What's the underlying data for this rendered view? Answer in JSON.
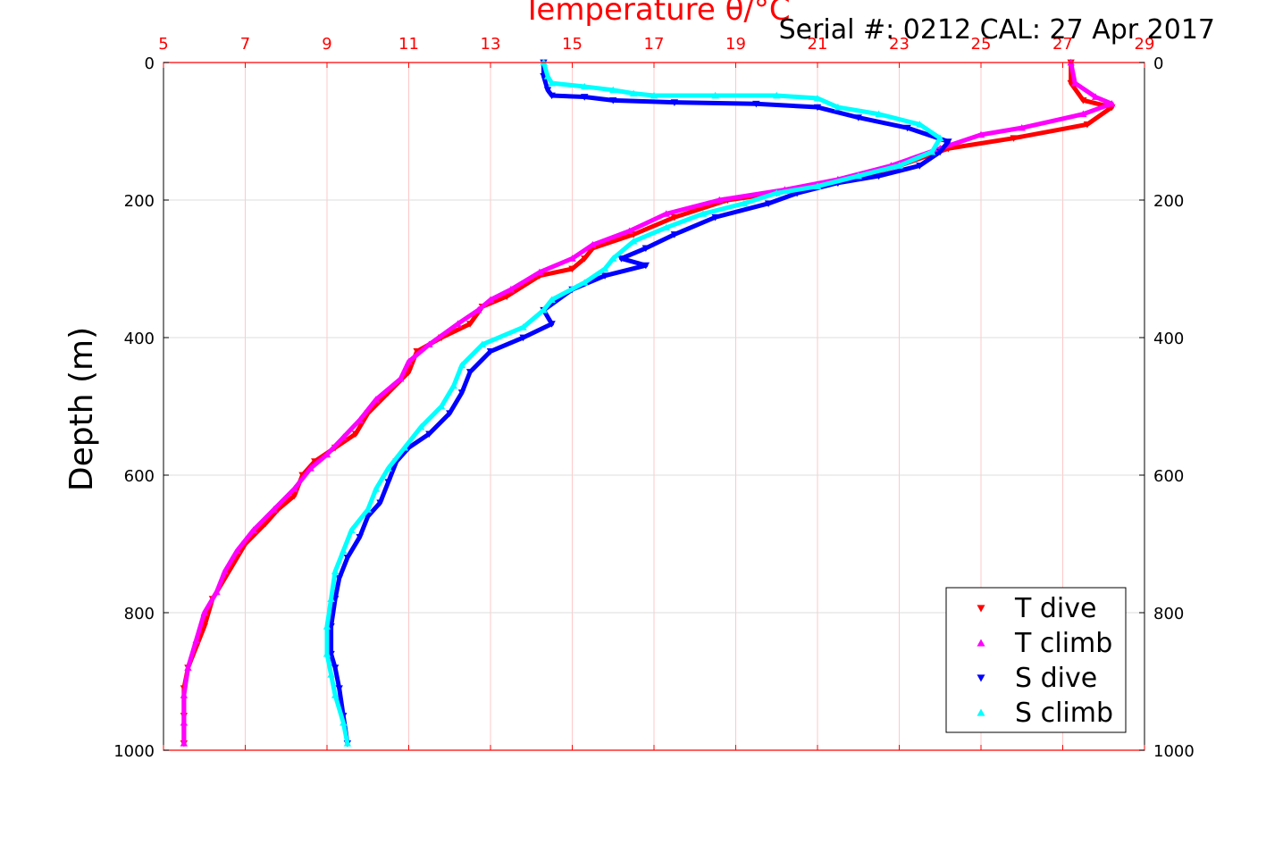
{
  "chart_data": {
    "type": "scatter",
    "title": "Temperature θ/°C",
    "annotation": "Serial #: 0212  CAL: 27 Apr 2017",
    "ylabel": "Depth (m)",
    "xlim": [
      5,
      29
    ],
    "ylim": [
      1000,
      0
    ],
    "y_inverted": true,
    "x_axis_position": "top",
    "right_axis": true,
    "grid": true,
    "legend_position": "bottom-right",
    "x_ticks": [
      5,
      7,
      9,
      11,
      13,
      15,
      17,
      19,
      21,
      23,
      25,
      27,
      29
    ],
    "y_ticks": [
      0,
      200,
      400,
      600,
      800,
      1000
    ],
    "colors": {
      "axis_top": "#ff0000",
      "grid_vertical": "#ffc8c8",
      "grid_horizontal": "#dcdcdc"
    },
    "series": [
      {
        "name": "T dive",
        "marker": "triangle-down",
        "color": "#ff0000",
        "points": [
          [
            27.2,
            0
          ],
          [
            27.2,
            30
          ],
          [
            27.5,
            55
          ],
          [
            28.2,
            65
          ],
          [
            27.6,
            90
          ],
          [
            25.8,
            110
          ],
          [
            24.2,
            125
          ],
          [
            23.0,
            150
          ],
          [
            21.5,
            175
          ],
          [
            20.0,
            190
          ],
          [
            18.8,
            200
          ],
          [
            17.5,
            225
          ],
          [
            16.5,
            250
          ],
          [
            15.5,
            270
          ],
          [
            15.3,
            285
          ],
          [
            15.0,
            300
          ],
          [
            14.2,
            310
          ],
          [
            13.4,
            340
          ],
          [
            12.8,
            355
          ],
          [
            12.5,
            380
          ],
          [
            11.8,
            400
          ],
          [
            11.2,
            420
          ],
          [
            11.0,
            450
          ],
          [
            10.5,
            480
          ],
          [
            10.0,
            510
          ],
          [
            9.7,
            540
          ],
          [
            9.2,
            560
          ],
          [
            8.7,
            580
          ],
          [
            8.4,
            600
          ],
          [
            8.2,
            630
          ],
          [
            7.8,
            650
          ],
          [
            7.5,
            670
          ],
          [
            7.0,
            700
          ],
          [
            6.7,
            730
          ],
          [
            6.5,
            750
          ],
          [
            6.2,
            780
          ],
          [
            6.0,
            820
          ],
          [
            5.8,
            850
          ],
          [
            5.6,
            880
          ],
          [
            5.5,
            910
          ],
          [
            5.5,
            950
          ],
          [
            5.5,
            990
          ]
        ]
      },
      {
        "name": "T climb",
        "marker": "triangle-up",
        "color": "#ff00ff",
        "points": [
          [
            27.2,
            0
          ],
          [
            27.3,
            30
          ],
          [
            27.8,
            50
          ],
          [
            28.2,
            60
          ],
          [
            27.5,
            75
          ],
          [
            26.0,
            95
          ],
          [
            25.0,
            105
          ],
          [
            24.0,
            125
          ],
          [
            22.8,
            150
          ],
          [
            21.5,
            170
          ],
          [
            20.2,
            185
          ],
          [
            18.6,
            200
          ],
          [
            17.3,
            220
          ],
          [
            16.4,
            245
          ],
          [
            15.5,
            265
          ],
          [
            15.0,
            285
          ],
          [
            14.2,
            305
          ],
          [
            13.5,
            330
          ],
          [
            13.0,
            345
          ],
          [
            12.7,
            360
          ],
          [
            12.2,
            380
          ],
          [
            11.5,
            410
          ],
          [
            11.0,
            435
          ],
          [
            10.8,
            460
          ],
          [
            10.2,
            490
          ],
          [
            9.8,
            520
          ],
          [
            9.4,
            545
          ],
          [
            9.0,
            570
          ],
          [
            8.6,
            590
          ],
          [
            8.2,
            620
          ],
          [
            7.7,
            650
          ],
          [
            7.2,
            680
          ],
          [
            6.8,
            710
          ],
          [
            6.5,
            740
          ],
          [
            6.3,
            770
          ],
          [
            6.0,
            800
          ],
          [
            5.8,
            840
          ],
          [
            5.6,
            880
          ],
          [
            5.5,
            920
          ],
          [
            5.5,
            960
          ],
          [
            5.5,
            990
          ]
        ]
      },
      {
        "name": "S dive",
        "marker": "triangle-down",
        "color": "#0000ff",
        "points": [
          [
            14.3,
            0
          ],
          [
            14.3,
            20
          ],
          [
            14.4,
            40
          ],
          [
            14.5,
            48
          ],
          [
            15.3,
            50
          ],
          [
            16.0,
            55
          ],
          [
            17.5,
            58
          ],
          [
            19.5,
            60
          ],
          [
            21.0,
            65
          ],
          [
            22.0,
            80
          ],
          [
            23.2,
            95
          ],
          [
            24.2,
            115
          ],
          [
            24.0,
            130
          ],
          [
            23.5,
            150
          ],
          [
            22.5,
            165
          ],
          [
            21.5,
            175
          ],
          [
            20.5,
            190
          ],
          [
            19.8,
            205
          ],
          [
            18.5,
            225
          ],
          [
            17.5,
            250
          ],
          [
            16.8,
            270
          ],
          [
            16.2,
            285
          ],
          [
            16.8,
            295
          ],
          [
            15.8,
            310
          ],
          [
            15.0,
            330
          ],
          [
            14.3,
            360
          ],
          [
            14.5,
            380
          ],
          [
            13.8,
            400
          ],
          [
            13.0,
            420
          ],
          [
            12.5,
            450
          ],
          [
            12.3,
            480
          ],
          [
            12.0,
            510
          ],
          [
            11.5,
            540
          ],
          [
            11.0,
            560
          ],
          [
            10.7,
            580
          ],
          [
            10.5,
            610
          ],
          [
            10.3,
            640
          ],
          [
            10.0,
            660
          ],
          [
            9.8,
            690
          ],
          [
            9.5,
            720
          ],
          [
            9.3,
            750
          ],
          [
            9.2,
            780
          ],
          [
            9.1,
            820
          ],
          [
            9.1,
            860
          ],
          [
            9.2,
            880
          ],
          [
            9.3,
            910
          ],
          [
            9.4,
            950
          ],
          [
            9.5,
            990
          ]
        ]
      },
      {
        "name": "S climb",
        "marker": "triangle-up",
        "color": "#00ffff",
        "points": [
          [
            14.3,
            0
          ],
          [
            14.4,
            20
          ],
          [
            14.5,
            30
          ],
          [
            15.3,
            35
          ],
          [
            16.0,
            40
          ],
          [
            16.5,
            45
          ],
          [
            17.0,
            48
          ],
          [
            18.5,
            48
          ],
          [
            20.0,
            48
          ],
          [
            21.0,
            52
          ],
          [
            21.5,
            65
          ],
          [
            22.5,
            75
          ],
          [
            23.5,
            90
          ],
          [
            24.0,
            110
          ],
          [
            23.8,
            130
          ],
          [
            23.0,
            150
          ],
          [
            22.0,
            165
          ],
          [
            21.0,
            180
          ],
          [
            20.0,
            190
          ],
          [
            19.2,
            205
          ],
          [
            18.2,
            220
          ],
          [
            17.3,
            240
          ],
          [
            16.5,
            260
          ],
          [
            16.0,
            285
          ],
          [
            15.8,
            300
          ],
          [
            15.3,
            320
          ],
          [
            14.5,
            345
          ],
          [
            14.3,
            360
          ],
          [
            13.8,
            385
          ],
          [
            12.8,
            410
          ],
          [
            12.3,
            440
          ],
          [
            12.1,
            470
          ],
          [
            11.8,
            500
          ],
          [
            11.3,
            530
          ],
          [
            10.9,
            560
          ],
          [
            10.5,
            590
          ],
          [
            10.2,
            620
          ],
          [
            10.0,
            650
          ],
          [
            9.6,
            680
          ],
          [
            9.4,
            710
          ],
          [
            9.2,
            740
          ],
          [
            9.1,
            780
          ],
          [
            9.0,
            820
          ],
          [
            9.0,
            860
          ],
          [
            9.1,
            890
          ],
          [
            9.2,
            920
          ],
          [
            9.4,
            960
          ],
          [
            9.5,
            990
          ]
        ]
      }
    ]
  }
}
